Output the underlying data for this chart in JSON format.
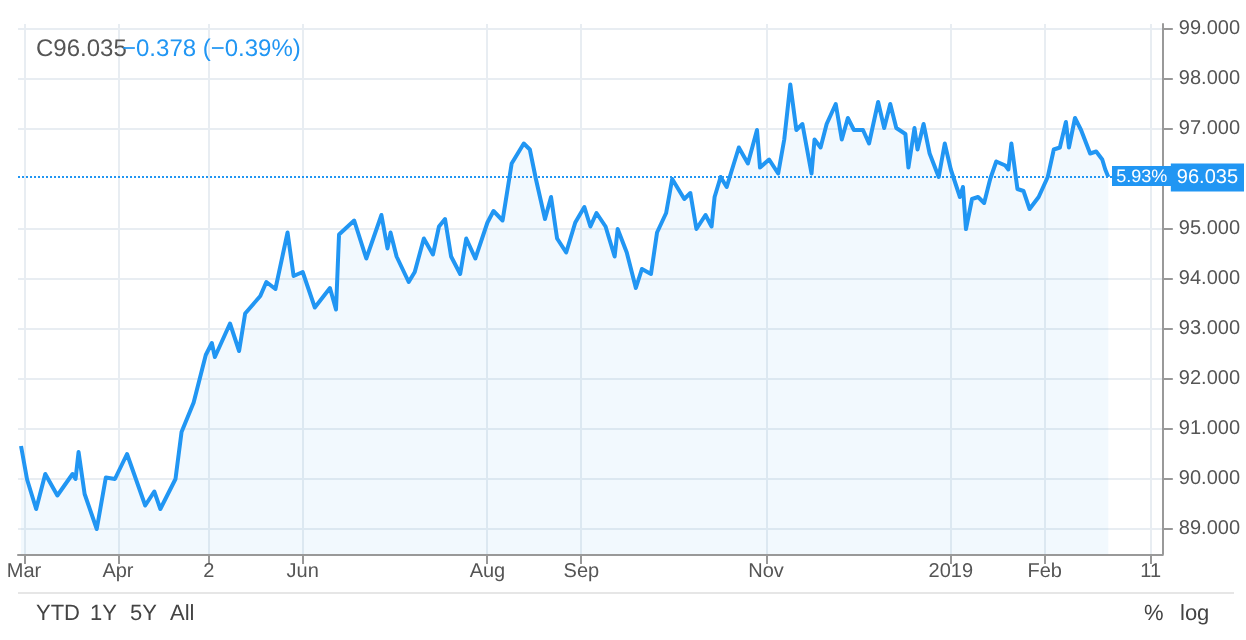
{
  "chart_data": {
    "type": "area",
    "annotations": [
      "C96.035",
      "−0.378 (−0.39%)",
      "5.93%",
      "YTD",
      "1Y",
      "5Y",
      "All",
      "%",
      "log"
    ],
    "x": [
      "2018-02-28",
      "2018-03-02",
      "2018-03-05",
      "2018-03-08",
      "2018-03-12",
      "2018-03-17",
      "2018-03-18",
      "2018-03-19",
      "2018-03-21",
      "2018-03-25",
      "2018-03-28",
      "2018-03-31",
      "2018-04-04",
      "2018-04-10",
      "2018-04-13",
      "2018-04-15",
      "2018-04-20",
      "2018-04-22",
      "2018-04-26",
      "2018-04-30",
      "2018-05-02",
      "2018-05-03",
      "2018-05-08",
      "2018-05-11",
      "2018-05-13",
      "2018-05-18",
      "2018-05-20",
      "2018-05-23",
      "2018-05-27",
      "2018-05-29",
      "2018-06-01",
      "2018-06-05",
      "2018-06-10",
      "2018-06-12",
      "2018-06-13",
      "2018-06-18",
      "2018-06-22",
      "2018-06-27",
      "2018-06-29",
      "2018-06-30",
      "2018-07-02",
      "2018-07-06",
      "2018-07-08",
      "2018-07-11",
      "2018-07-14",
      "2018-07-16",
      "2018-07-18",
      "2018-07-20",
      "2018-07-23",
      "2018-07-25",
      "2018-07-28",
      "2018-08-01",
      "2018-08-03",
      "2018-08-06",
      "2018-08-09",
      "2018-08-13",
      "2018-08-15",
      "2018-08-17",
      "2018-08-20",
      "2018-08-22",
      "2018-08-24",
      "2018-08-27",
      "2018-08-30",
      "2018-09-02",
      "2018-09-04",
      "2018-09-06",
      "2018-09-09",
      "2018-09-12",
      "2018-09-13",
      "2018-09-16",
      "2018-09-19",
      "2018-09-21",
      "2018-09-24",
      "2018-09-26",
      "2018-09-29",
      "2018-10-01",
      "2018-10-05",
      "2018-10-07",
      "2018-10-09",
      "2018-10-12",
      "2018-10-14",
      "2018-10-15",
      "2018-10-17",
      "2018-10-19",
      "2018-10-20",
      "2018-10-23",
      "2018-10-26",
      "2018-10-29",
      "2018-10-30",
      "2018-11-02",
      "2018-11-05",
      "2018-11-07",
      "2018-11-09",
      "2018-11-11",
      "2018-11-13",
      "2018-11-16",
      "2018-11-17",
      "2018-11-19",
      "2018-11-21",
      "2018-11-24",
      "2018-11-26",
      "2018-11-28",
      "2018-11-30",
      "2018-12-03",
      "2018-12-05",
      "2018-12-08",
      "2018-12-10",
      "2018-12-12",
      "2018-12-14",
      "2018-12-17",
      "2018-12-18",
      "2018-12-20",
      "2018-12-21",
      "2018-12-23",
      "2018-12-25",
      "2018-12-28",
      "2018-12-30",
      "2019-01-01",
      "2019-01-04",
      "2019-01-05",
      "2019-01-06",
      "2019-01-08",
      "2019-01-10",
      "2019-01-12",
      "2019-01-14",
      "2019-01-16",
      "2019-01-19",
      "2019-01-20",
      "2019-01-21",
      "2019-01-23",
      "2019-01-25",
      "2019-01-27",
      "2019-01-30",
      "2019-02-02",
      "2019-02-04",
      "2019-02-06",
      "2019-02-08",
      "2019-02-09",
      "2019-02-11",
      "2019-02-13",
      "2019-02-16",
      "2019-02-18",
      "2019-02-20",
      "2019-02-21",
      "2019-02-22"
    ],
    "series": [
      {
        "color": "#2196f3",
        "values": [
          90.66,
          89.99,
          89.4,
          90.1,
          89.67,
          90.1,
          90.0,
          90.54,
          89.7,
          89.0,
          90.03,
          90.0,
          90.5,
          89.47,
          89.75,
          89.4,
          90.0,
          90.94,
          91.53,
          92.48,
          92.72,
          92.44,
          93.11,
          92.56,
          93.31,
          93.66,
          93.94,
          93.8,
          94.93,
          94.06,
          94.14,
          93.43,
          93.82,
          93.39,
          94.89,
          95.17,
          94.41,
          95.28,
          94.61,
          94.93,
          94.45,
          93.94,
          94.14,
          94.81,
          94.49,
          95.05,
          95.2,
          94.45,
          94.1,
          94.81,
          94.41,
          95.13,
          95.36,
          95.17,
          96.31,
          96.71,
          96.59,
          96.0,
          95.2,
          95.64,
          94.81,
          94.53,
          95.13,
          95.44,
          95.05,
          95.32,
          95.05,
          94.45,
          95.0,
          94.53,
          93.82,
          94.2,
          94.1,
          94.93,
          95.32,
          96.0,
          95.6,
          95.72,
          95.0,
          95.28,
          95.05,
          95.64,
          96.04,
          95.84,
          96.04,
          96.63,
          96.31,
          96.98,
          96.23,
          96.39,
          96.11,
          96.79,
          97.89,
          96.98,
          97.1,
          96.11,
          96.79,
          96.63,
          97.1,
          97.5,
          96.79,
          97.22,
          96.98,
          96.98,
          96.71,
          97.54,
          97.02,
          97.5,
          97.02,
          96.9,
          96.23,
          97.02,
          96.59,
          97.1,
          96.51,
          96.04,
          96.71,
          96.19,
          95.64,
          95.84,
          95.0,
          95.6,
          95.64,
          95.52,
          96.0,
          96.35,
          96.27,
          96.19,
          96.71,
          95.8,
          95.76,
          95.4,
          95.64,
          96.04,
          96.59,
          96.63,
          97.14,
          96.63,
          97.22,
          96.98,
          96.51,
          96.55,
          96.39,
          96.19,
          96.04
        ]
      }
    ],
    "xlim": [
      "2018-02-27",
      "2019-03-12"
    ],
    "xticks": [
      {
        "value": "2018-03-01",
        "label": "Mar"
      },
      {
        "value": "2018-04-01",
        "label": "Apr"
      },
      {
        "value": "2018-05-01",
        "label": "2"
      },
      {
        "value": "2018-06-01",
        "label": "Jun"
      },
      {
        "value": "2018-08-01",
        "label": "Aug"
      },
      {
        "value": "2018-09-01",
        "label": "Sep"
      },
      {
        "value": "2018-11-01",
        "label": "Nov"
      },
      {
        "value": "2019-01-01",
        "label": "2019"
      },
      {
        "value": "2019-02-01",
        "label": "Feb"
      },
      {
        "value": "2019-03-08",
        "label": "11"
      }
    ],
    "ylim": [
      88.5,
      99.1
    ],
    "yticks": [
      {
        "value": 89,
        "label": "89.000"
      },
      {
        "value": 90,
        "label": "90.000"
      },
      {
        "value": 91,
        "label": "91.000"
      },
      {
        "value": 92,
        "label": "92.000"
      },
      {
        "value": 93,
        "label": "93.000"
      },
      {
        "value": 94,
        "label": "94.000"
      },
      {
        "value": 95,
        "label": "95.000"
      },
      {
        "value": 97,
        "label": "97.000"
      },
      {
        "value": 98,
        "label": "98.000"
      },
      {
        "value": 99,
        "label": "99.000"
      }
    ],
    "ref_lines": [
      {
        "axis": "y",
        "value": 96.035,
        "label": "96.035",
        "color": "#2196f3",
        "line_style": "dotted"
      }
    ],
    "grid": true,
    "marker": "none",
    "line_style": "solid"
  }
}
